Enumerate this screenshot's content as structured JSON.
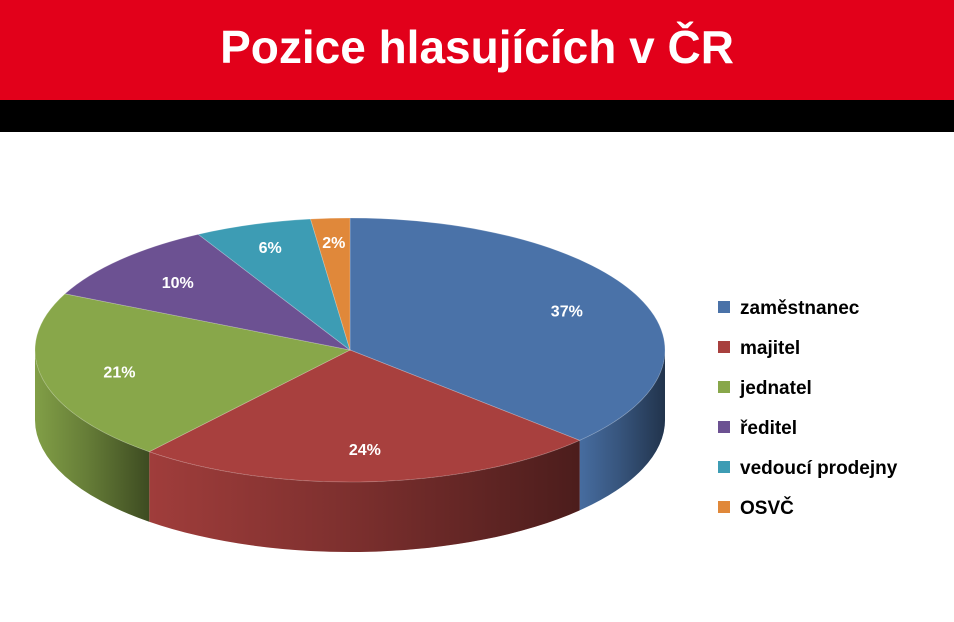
{
  "header": {
    "title": "Pozice hlasujících v ČR",
    "accent_color": "#e2001a"
  },
  "chart_data": {
    "type": "pie",
    "style": "3d",
    "categories": [
      "zaměstnanec",
      "majitel",
      "jednatel",
      "ředitel",
      "vedoucí prodejny",
      "OSVČ"
    ],
    "values": [
      37,
      24,
      21,
      10,
      6,
      2
    ],
    "labels": [
      "37%",
      "24%",
      "21%",
      "10%",
      "6%",
      "2%"
    ],
    "colors": [
      "#4a72a8",
      "#a8403e",
      "#88a74a",
      "#6c5192",
      "#3d9cb4",
      "#e0883a"
    ],
    "legend_position": "right"
  }
}
